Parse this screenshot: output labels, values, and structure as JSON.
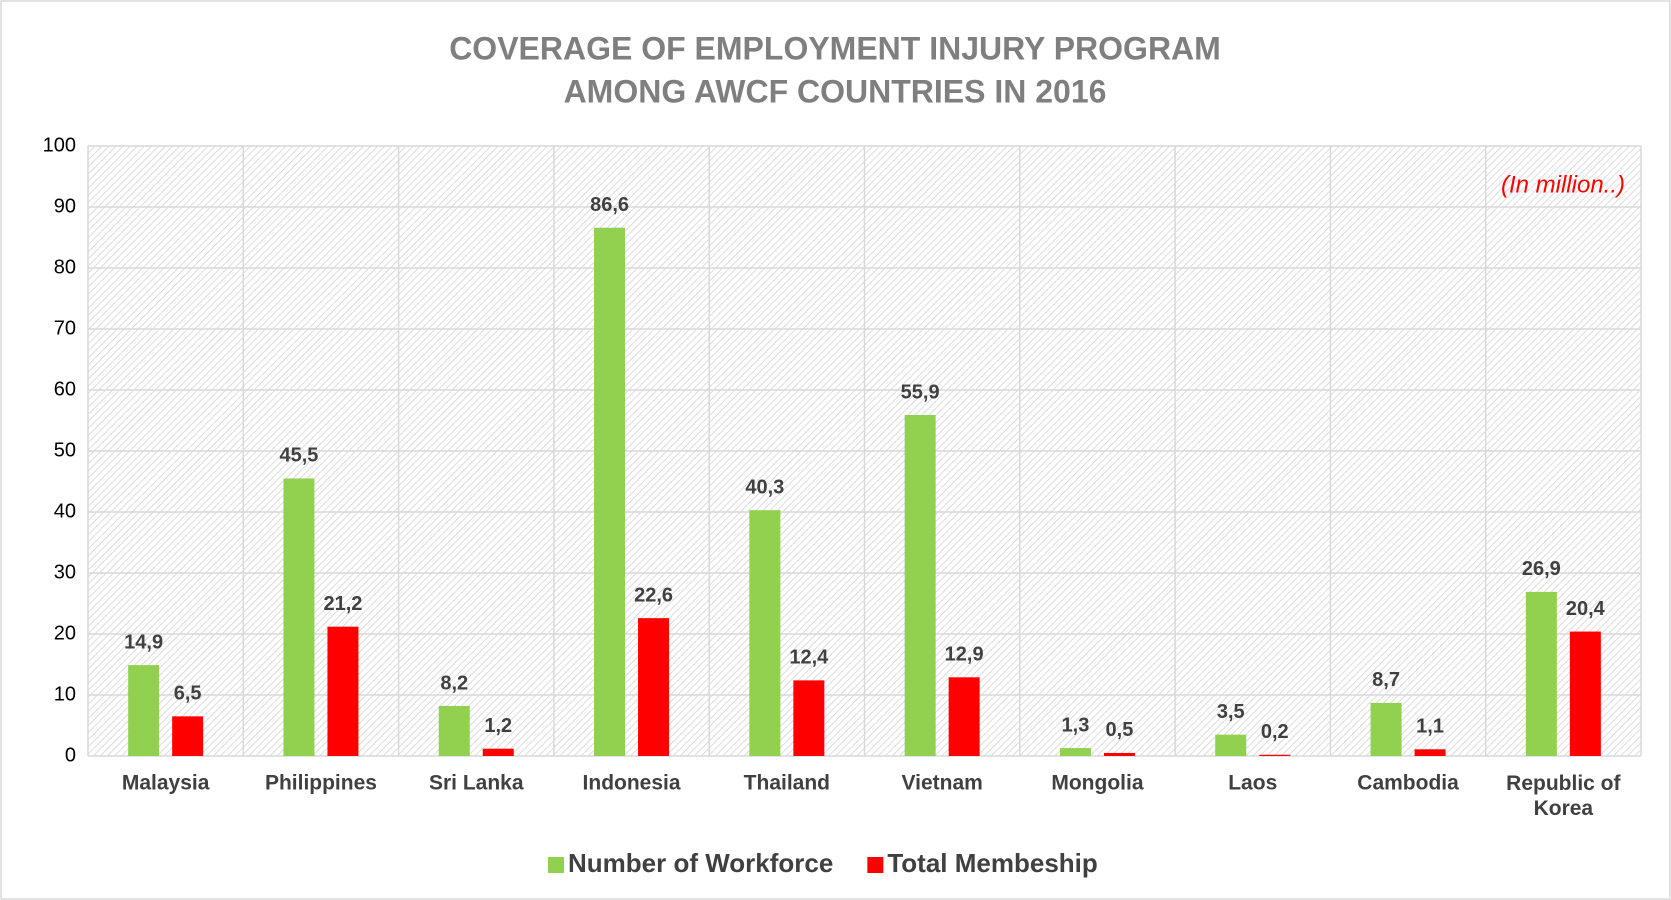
{
  "chart_data": {
    "type": "bar",
    "title": [
      "COVERAGE OF EMPLOYMENT INJURY PROGRAM",
      "AMONG AWCF COUNTRIES IN 2016"
    ],
    "annotation": "(In million..)",
    "categories": [
      "Malaysia",
      "Philippines",
      "Sri Lanka",
      "Indonesia",
      "Thailand",
      "Vietnam",
      "Mongolia",
      "Laos",
      "Cambodia",
      "Republic of Korea"
    ],
    "series": [
      {
        "name": "Number of Workforce",
        "color": "#92d050",
        "values": [
          14.9,
          45.5,
          8.2,
          86.6,
          40.3,
          55.9,
          1.3,
          3.5,
          8.7,
          26.9
        ],
        "value_labels": [
          "14,9",
          "45,5",
          "8,2",
          "86,6",
          "40,3",
          "55,9",
          "1,3",
          "3,5",
          "8,7",
          "26,9"
        ]
      },
      {
        "name": "Total Membeship",
        "color": "#ff0000",
        "values": [
          6.5,
          21.2,
          1.2,
          22.6,
          12.4,
          12.9,
          0.5,
          0.2,
          1.1,
          20.4
        ],
        "value_labels": [
          "6,5",
          "21,2",
          "1,2",
          "22,6",
          "12,4",
          "12,9",
          "0,5",
          "0,2",
          "1,1",
          "20,4"
        ]
      }
    ],
    "ylim": [
      0,
      100
    ],
    "yticks": [
      0,
      10,
      20,
      30,
      40,
      50,
      60,
      70,
      80,
      90,
      100
    ],
    "grid": true,
    "legend": "bottom"
  }
}
